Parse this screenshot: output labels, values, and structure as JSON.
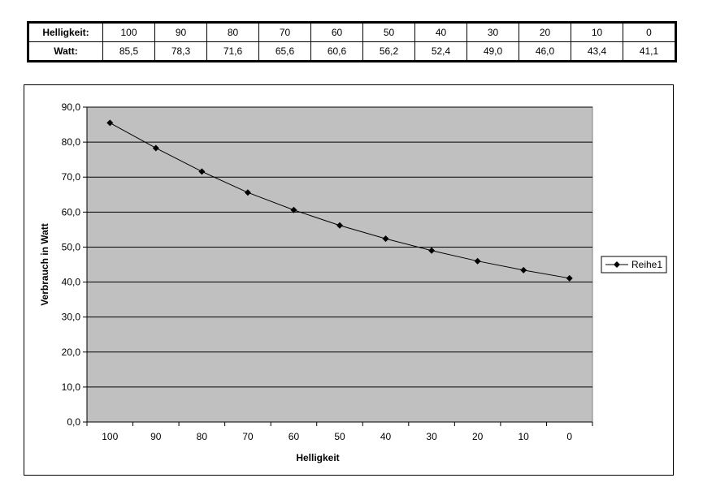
{
  "table": {
    "row_labels": [
      "Helligkeit:",
      "Watt:"
    ],
    "helligkeit": [
      "100",
      "90",
      "80",
      "70",
      "60",
      "50",
      "40",
      "30",
      "20",
      "10",
      "0"
    ],
    "watt": [
      "85,5",
      "78,3",
      "71,6",
      "65,6",
      "60,6",
      "56,2",
      "52,4",
      "49,0",
      "46,0",
      "43,4",
      "41,1"
    ]
  },
  "chart_data": {
    "type": "line",
    "title": "",
    "xlabel": "Helligkeit",
    "ylabel": "Verbrauch in Watt",
    "categories": [
      "100",
      "90",
      "80",
      "70",
      "60",
      "50",
      "40",
      "30",
      "20",
      "10",
      "0"
    ],
    "series": [
      {
        "name": "Reihe1",
        "values": [
          85.5,
          78.3,
          71.6,
          65.6,
          60.6,
          56.2,
          52.4,
          49.0,
          46.0,
          43.4,
          41.1
        ]
      }
    ],
    "ylim": [
      0,
      90
    ],
    "yticks": [
      "0,0",
      "10,0",
      "20,0",
      "30,0",
      "40,0",
      "50,0",
      "60,0",
      "70,0",
      "80,0",
      "90,0"
    ],
    "grid": true,
    "legend": "right",
    "colors": {
      "plot_bg": "#c0c0c0",
      "line": "#000000"
    }
  }
}
